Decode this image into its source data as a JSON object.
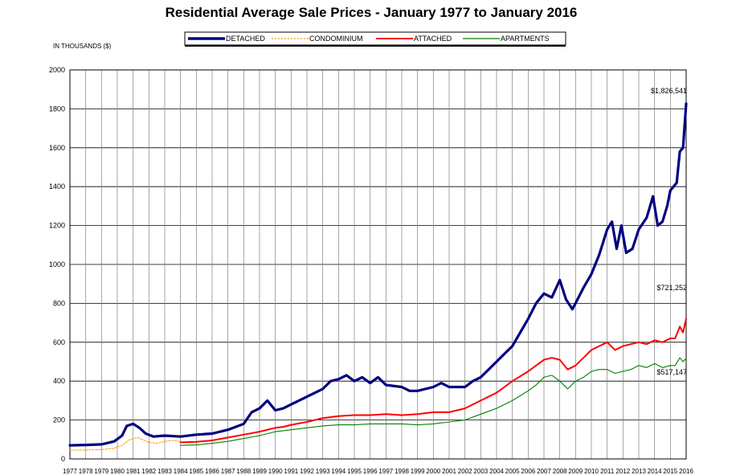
{
  "chart_data": {
    "type": "line",
    "title": "Residential Average Sale Prices  -  January 1977 to January 2016",
    "ylabel": "IN THOUSANDS ($)",
    "xlabel": "",
    "ylim": [
      0,
      2000
    ],
    "xlim": [
      1977,
      2016
    ],
    "grid": true,
    "legend_position": "top",
    "y_ticks": [
      "0",
      "200",
      "400",
      "600",
      "800",
      "1000",
      "1200",
      "1400",
      "1600",
      "1800",
      "2000"
    ],
    "x_ticks": [
      "1977",
      "1978",
      "1979",
      "1980",
      "1981",
      "1982",
      "1983",
      "1984",
      "1985",
      "1986",
      "1987",
      "1988",
      "1989",
      "1990",
      "1991",
      "1992",
      "1993",
      "1994",
      "1995",
      "1996",
      "1997",
      "1998",
      "1999",
      "2000",
      "2001",
      "2002",
      "2003",
      "2004",
      "2005",
      "2006",
      "2007",
      "2008",
      "2009",
      "2010",
      "2011",
      "2012",
      "2013",
      "2014",
      "2015",
      "2016"
    ],
    "series": [
      {
        "name": "DETACHED",
        "color": "#000080",
        "style": "solid-thick",
        "x": [
          1977,
          1978,
          1979,
          1979.8,
          1980.3,
          1980.6,
          1981.0,
          1981.4,
          1981.8,
          1982.3,
          1983,
          1984,
          1985,
          1986,
          1987,
          1988,
          1988.5,
          1989,
          1989.5,
          1990,
          1990.5,
          1991,
          1992,
          1993,
          1993.5,
          1994,
          1994.5,
          1995,
          1995.5,
          1996,
          1996.5,
          1997,
          1998,
          1998.5,
          1999,
          2000,
          2000.5,
          2001,
          2002,
          2002.5,
          2003,
          2004,
          2004.5,
          2005,
          2006,
          2006.5,
          2007,
          2007.5,
          2008,
          2008.4,
          2008.8,
          2009,
          2009.5,
          2010,
          2010.5,
          2011,
          2011.3,
          2011.6,
          2011.9,
          2012.2,
          2012.6,
          2013,
          2013.5,
          2013.9,
          2014.2,
          2014.5,
          2014.8,
          2015,
          2015.2,
          2015.4,
          2015.6,
          2015.8,
          2016
        ],
        "values": [
          70,
          72,
          75,
          90,
          120,
          170,
          180,
          160,
          130,
          115,
          120,
          115,
          125,
          130,
          150,
          180,
          240,
          260,
          300,
          250,
          260,
          280,
          320,
          360,
          400,
          410,
          430,
          400,
          420,
          390,
          420,
          380,
          370,
          350,
          350,
          370,
          390,
          370,
          370,
          400,
          420,
          500,
          540,
          580,
          720,
          800,
          850,
          830,
          920,
          820,
          770,
          800,
          880,
          950,
          1050,
          1180,
          1220,
          1080,
          1200,
          1060,
          1080,
          1180,
          1240,
          1350,
          1200,
          1220,
          1300,
          1380,
          1400,
          1420,
          1580,
          1600,
          1826.541
        ]
      },
      {
        "name": "CONDOMINIUM",
        "color": "#ff9900",
        "style": "dashed",
        "x": [
          1977,
          1978,
          1979,
          1979.8,
          1980.3,
          1980.8,
          1981.3,
          1982,
          1982.5,
          1983,
          1983.5,
          1984
        ],
        "values": [
          45,
          46,
          48,
          55,
          70,
          100,
          110,
          85,
          80,
          90,
          95,
          90
        ]
      },
      {
        "name": "ATTACHED",
        "color": "#ff0000",
        "style": "solid",
        "x": [
          1984,
          1985,
          1986,
          1987,
          1988,
          1989,
          1990,
          1990.5,
          1991,
          1992,
          1993,
          1994,
          1995,
          1996,
          1997,
          1998,
          1999,
          2000,
          2001,
          2002,
          2003,
          2004,
          2005,
          2006,
          2006.5,
          2007,
          2007.5,
          2008,
          2008.5,
          2009,
          2009.5,
          2010,
          2010.5,
          2011,
          2011.5,
          2012,
          2012.5,
          2013,
          2013.5,
          2014,
          2014.5,
          2015,
          2015.3,
          2015.6,
          2015.8,
          2016
        ],
        "values": [
          85,
          88,
          95,
          110,
          125,
          140,
          160,
          165,
          175,
          190,
          210,
          220,
          225,
          225,
          230,
          225,
          230,
          240,
          240,
          260,
          300,
          340,
          400,
          450,
          480,
          510,
          520,
          510,
          460,
          480,
          520,
          560,
          580,
          600,
          560,
          580,
          590,
          600,
          590,
          610,
          600,
          620,
          620,
          680,
          650,
          721.252
        ]
      },
      {
        "name": "APARTMENTS",
        "color": "#008000",
        "style": "solid-thin",
        "x": [
          1984,
          1985,
          1986,
          1987,
          1988,
          1989,
          1990,
          1990.5,
          1991,
          1992,
          1993,
          1994,
          1995,
          1996,
          1997,
          1998,
          1999,
          2000,
          2001,
          2002,
          2003,
          2004,
          2005,
          2006,
          2006.5,
          2007,
          2007.5,
          2008,
          2008.5,
          2009,
          2009.5,
          2010,
          2010.5,
          2011,
          2011.5,
          2012,
          2012.5,
          2013,
          2013.5,
          2014,
          2014.5,
          2015,
          2015.3,
          2015.6,
          2015.8,
          2016
        ],
        "values": [
          70,
          72,
          80,
          90,
          105,
          120,
          140,
          145,
          150,
          160,
          170,
          175,
          175,
          180,
          180,
          180,
          175,
          180,
          190,
          200,
          230,
          260,
          300,
          350,
          380,
          420,
          430,
          400,
          360,
          400,
          420,
          450,
          460,
          460,
          440,
          450,
          460,
          480,
          470,
          490,
          470,
          480,
          480,
          520,
          500,
          517.147
        ]
      }
    ],
    "annotations": [
      "$1,826,541",
      "$721,252",
      "$517,147"
    ]
  }
}
